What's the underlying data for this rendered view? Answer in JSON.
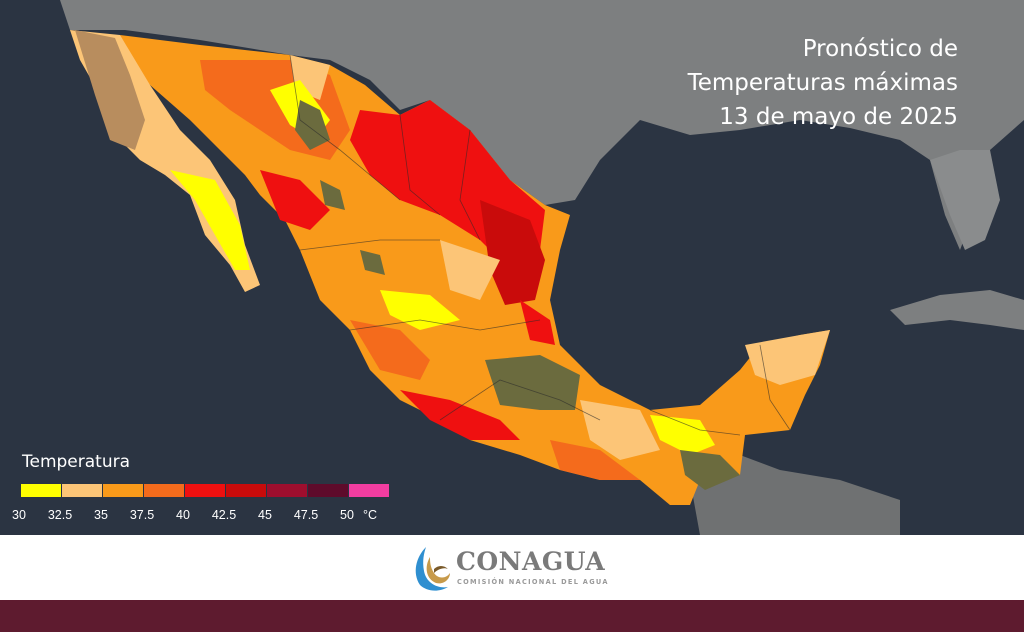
{
  "title": {
    "line1": "Pronóstico de",
    "line2": "Temperaturas máximas",
    "line3": "13 de mayo de 2025"
  },
  "legend": {
    "title": "Temperatura",
    "unit": "°C",
    "colors": [
      "#ffff00",
      "#fcc577",
      "#f99a1a",
      "#f46b1c",
      "#ef1010",
      "#c90b0b",
      "#9e0e2e",
      "#5e0b2b",
      "#f23da0"
    ],
    "ticks": [
      "30",
      "32.5",
      "35",
      "37.5",
      "40",
      "42.5",
      "45",
      "47.5",
      "50"
    ]
  },
  "logo": {
    "name": "CONAGUA",
    "subtitle": "COMISIÓN NACIONAL DEL AGUA"
  },
  "colors": {
    "ocean": "#2b3442",
    "land": "#7d7f80",
    "bottom_bar": "#5e1b2f"
  }
}
